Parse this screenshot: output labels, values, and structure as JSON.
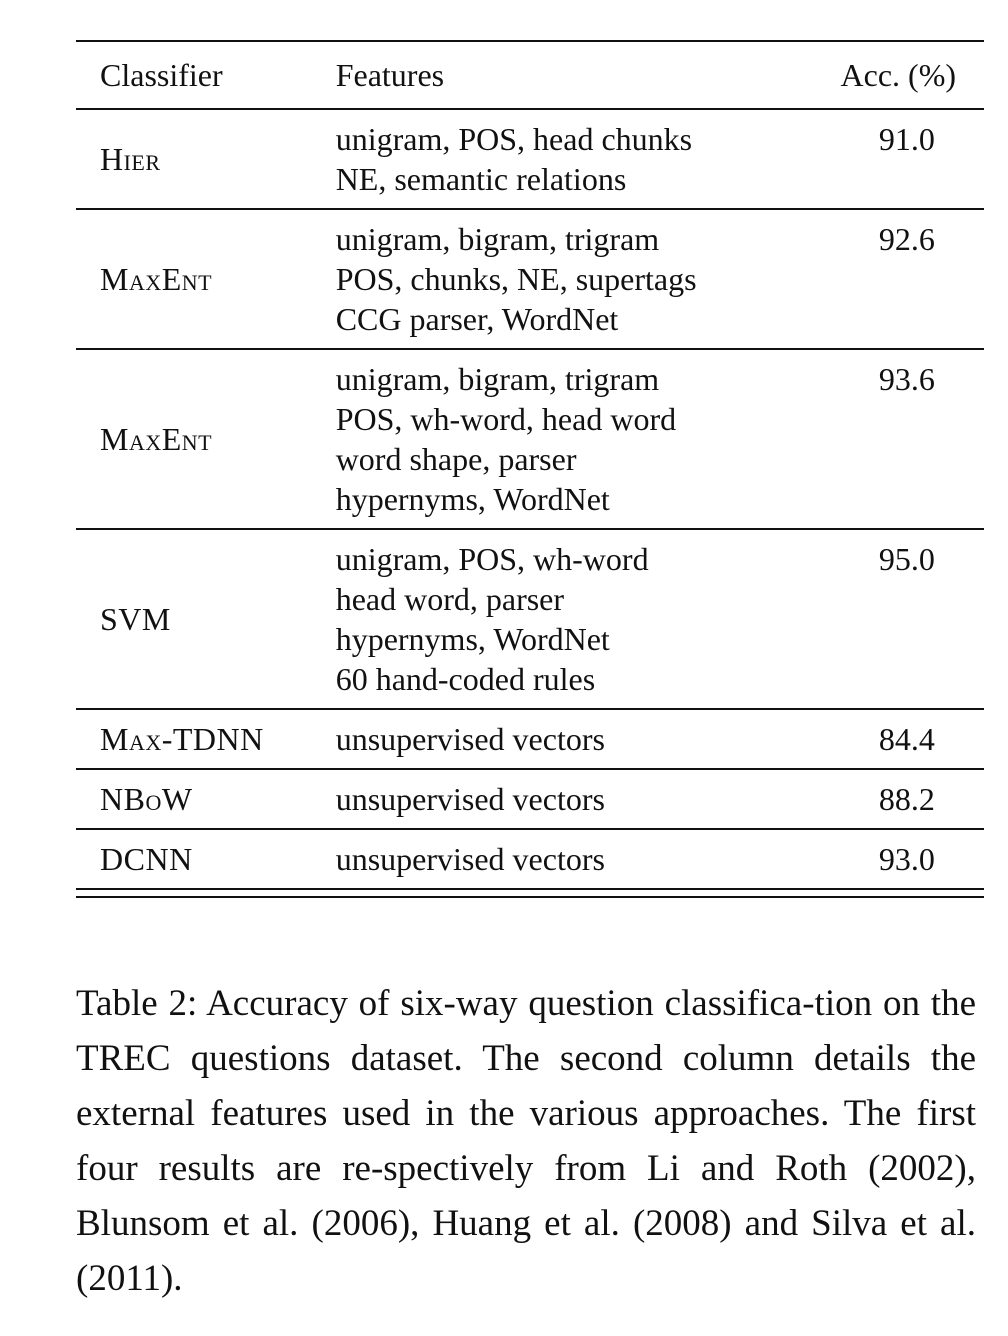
{
  "table": {
    "headers": {
      "classifier": "Classifier",
      "features": "Features",
      "accuracy": "Acc. (%)"
    },
    "rows": [
      {
        "classifier": "Hier",
        "features": [
          "unigram, POS, head chunks",
          "NE, semantic relations"
        ],
        "accuracy": "91.0"
      },
      {
        "classifier": "MaxEnt",
        "features": [
          "unigram, bigram, trigram",
          "POS, chunks, NE, supertags",
          "CCG parser, WordNet"
        ],
        "accuracy": "92.6"
      },
      {
        "classifier": "MaxEnt",
        "features": [
          "unigram, bigram, trigram",
          "POS, wh-word, head word",
          "word shape, parser",
          "hypernyms, WordNet"
        ],
        "accuracy": "93.6"
      },
      {
        "classifier": "SVM",
        "features": [
          "unigram, POS, wh-word",
          "head word, parser",
          "hypernyms, WordNet",
          "60 hand-coded rules"
        ],
        "accuracy": "95.0"
      },
      {
        "classifier": "Max-TDNN",
        "features": [
          "unsupervised vectors"
        ],
        "accuracy": "84.4"
      },
      {
        "classifier": "NBoW",
        "features": [
          "unsupervised vectors"
        ],
        "accuracy": "88.2"
      },
      {
        "classifier": "DCNN",
        "features": [
          "unsupervised vectors"
        ],
        "accuracy": "93.0"
      }
    ]
  },
  "caption": "Table 2: Accuracy of six-way question classifica-tion on the TREC questions dataset. The second column details the external features used in the various approaches. The first four results are re-spectively from Li and Roth (2002), Blunsom et al. (2006), Huang et al. (2008) and Silva et al. (2011)."
}
